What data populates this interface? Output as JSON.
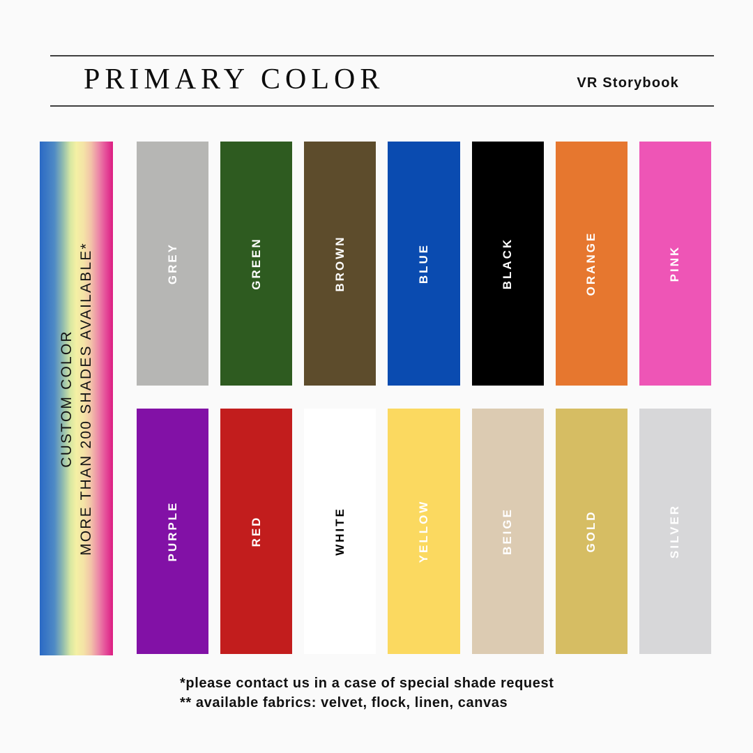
{
  "header": {
    "title": "PRIMARY COLOR",
    "brand": "VR Storybook"
  },
  "custom_bar": {
    "line1": "CUSTOM COLOR",
    "line2": "MORE THAN 200 SHADES AVAILABLE*",
    "gradient_stops": [
      "#2a69c5 0%",
      "#4f8ac5 20%",
      "#93bdae 32%",
      "#d8e8a2 42%",
      "#f4f0a4 50%",
      "#f4e3a6 60%",
      "#f2c3a8 70%",
      "#ec8aa8 80%",
      "#e54f9a 90%",
      "#dc1c81 100%"
    ]
  },
  "swatches": {
    "row1": [
      {
        "label": "GREY",
        "hex": "#b6b6b4",
        "label_color": "#ffffff"
      },
      {
        "label": "GREEN",
        "hex": "#2e5b20",
        "label_color": "#ffffff"
      },
      {
        "label": "BROWN",
        "hex": "#5d4c2c",
        "label_color": "#ffffff"
      },
      {
        "label": "BLUE",
        "hex": "#0a4bb0",
        "label_color": "#ffffff"
      },
      {
        "label": "BLACK",
        "hex": "#000000",
        "label_color": "#ffffff"
      },
      {
        "label": "ORANGE",
        "hex": "#e6772f",
        "label_color": "#ffffff"
      },
      {
        "label": "PINK",
        "hex": "#ee55b6",
        "label_color": "#ffffff"
      }
    ],
    "row2": [
      {
        "label": "PURPLE",
        "hex": "#8211a6",
        "label_color": "#ffffff"
      },
      {
        "label": "RED",
        "hex": "#c21d1d",
        "label_color": "#ffffff"
      },
      {
        "label": "WHITE",
        "hex": "#ffffff",
        "label_color": "#000000"
      },
      {
        "label": "YELLOW",
        "hex": "#fbd960",
        "label_color": "#ffffff"
      },
      {
        "label": "BEIGE",
        "hex": "#dccbb2",
        "label_color": "#ffffff"
      },
      {
        "label": "GOLD",
        "hex": "#d6bd63",
        "label_color": "#ffffff"
      },
      {
        "label": "SILVER",
        "hex": "#d7d7d9",
        "label_color": "#ffffff"
      }
    ]
  },
  "footnotes": {
    "line1": "*please contact us in a case of special shade request",
    "line2": "** available fabrics: velvet, flock, linen, canvas"
  }
}
